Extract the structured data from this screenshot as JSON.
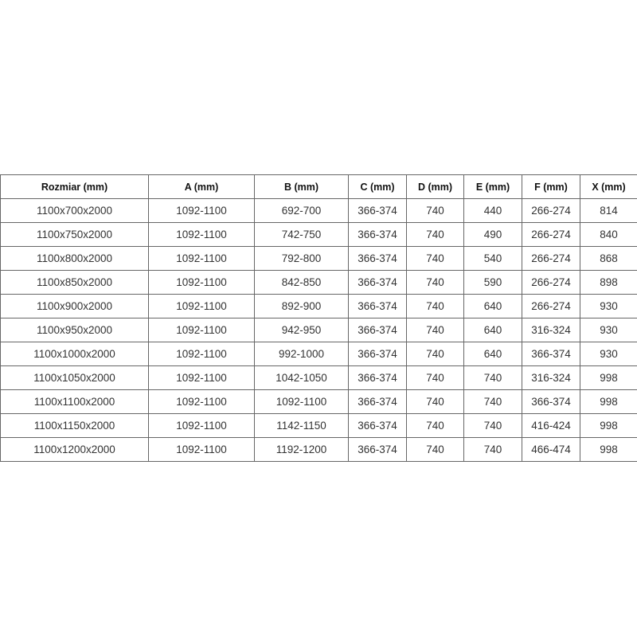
{
  "table": {
    "headers": [
      "Rozmiar (mm)",
      "A (mm)",
      "B (mm)",
      "C (mm)",
      "D (mm)",
      "E (mm)",
      "F (mm)",
      "X (mm)"
    ],
    "rows": [
      [
        "1100x700x2000",
        "1092-1100",
        "692-700",
        "366-374",
        "740",
        "440",
        "266-274",
        "814"
      ],
      [
        "1100x750x2000",
        "1092-1100",
        "742-750",
        "366-374",
        "740",
        "490",
        "266-274",
        "840"
      ],
      [
        "1100x800x2000",
        "1092-1100",
        "792-800",
        "366-374",
        "740",
        "540",
        "266-274",
        "868"
      ],
      [
        "1100x850x2000",
        "1092-1100",
        "842-850",
        "366-374",
        "740",
        "590",
        "266-274",
        "898"
      ],
      [
        "1100x900x2000",
        "1092-1100",
        "892-900",
        "366-374",
        "740",
        "640",
        "266-274",
        "930"
      ],
      [
        "1100x950x2000",
        "1092-1100",
        "942-950",
        "366-374",
        "740",
        "640",
        "316-324",
        "930"
      ],
      [
        "1100x1000x2000",
        "1092-1100",
        "992-1000",
        "366-374",
        "740",
        "640",
        "366-374",
        "930"
      ],
      [
        "1100x1050x2000",
        "1092-1100",
        "1042-1050",
        "366-374",
        "740",
        "740",
        "316-324",
        "998"
      ],
      [
        "1100x1100x2000",
        "1092-1100",
        "1092-1100",
        "366-374",
        "740",
        "740",
        "366-374",
        "998"
      ],
      [
        "1100x1150x2000",
        "1092-1100",
        "1142-1150",
        "366-374",
        "740",
        "740",
        "416-424",
        "998"
      ],
      [
        "1100x1200x2000",
        "1092-1100",
        "1192-1200",
        "366-374",
        "740",
        "740",
        "466-474",
        "998"
      ]
    ]
  }
}
